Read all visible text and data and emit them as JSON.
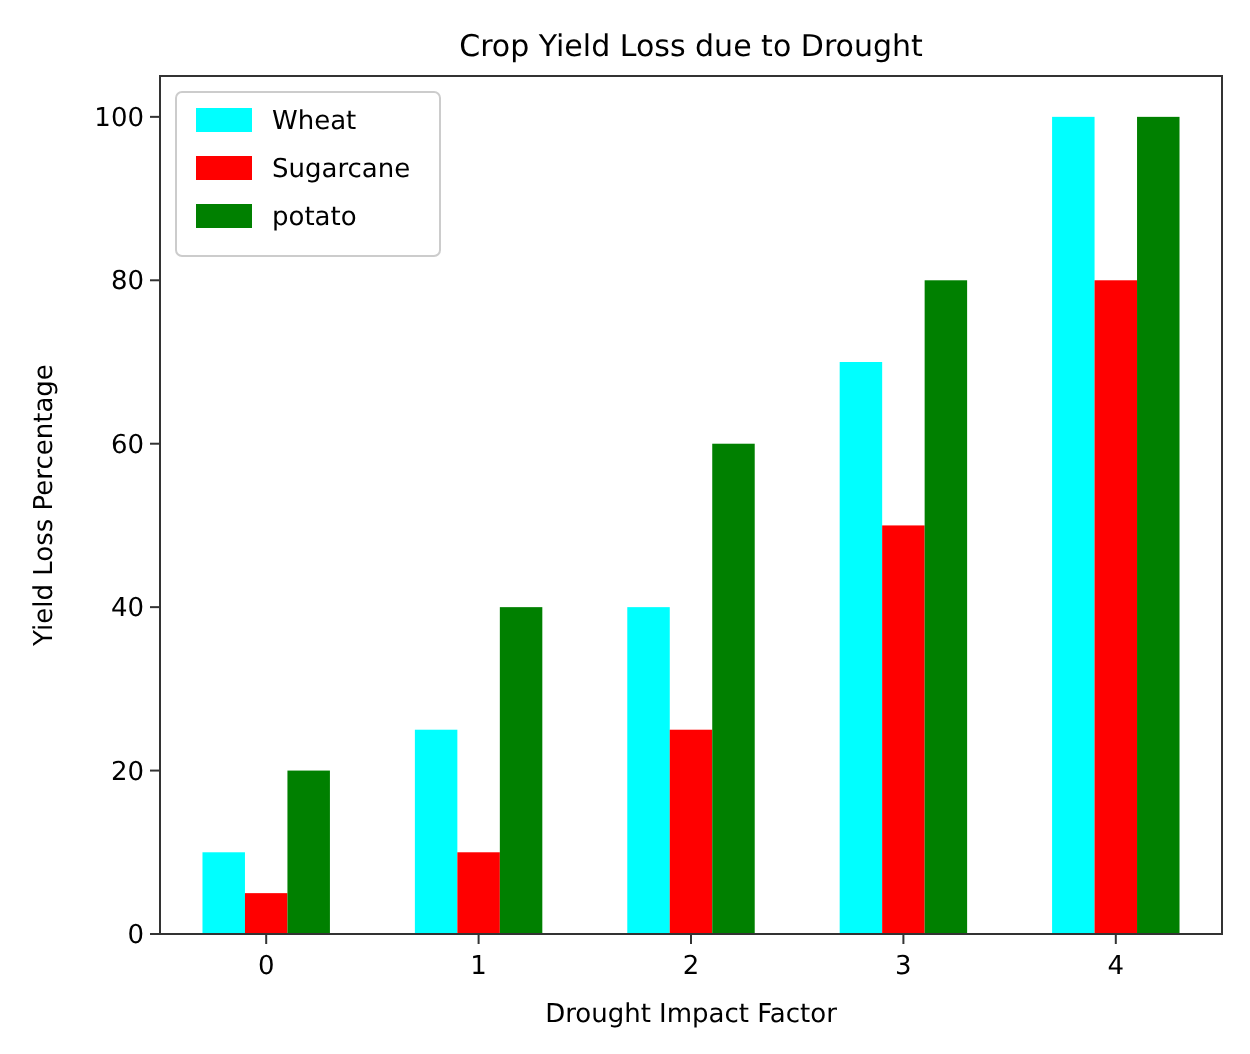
{
  "chart_data": {
    "type": "bar",
    "title": "Crop Yield Loss due to Drought",
    "xlabel": "Drought Impact Factor",
    "ylabel": "Yield Loss Percentage",
    "categories": [
      "0",
      "1",
      "2",
      "3",
      "4"
    ],
    "series": [
      {
        "name": "Wheat",
        "color": "#00ffff",
        "values": [
          10,
          25,
          40,
          70,
          100
        ]
      },
      {
        "name": "Sugarcane",
        "color": "#ff0000",
        "values": [
          5,
          10,
          25,
          50,
          80
        ]
      },
      {
        "name": "potato",
        "color": "#008000",
        "values": [
          20,
          40,
          60,
          80,
          100
        ]
      }
    ],
    "ylim": [
      0,
      105
    ],
    "yticks": [
      0,
      20,
      40,
      60,
      80,
      100
    ],
    "legend": "top left"
  }
}
